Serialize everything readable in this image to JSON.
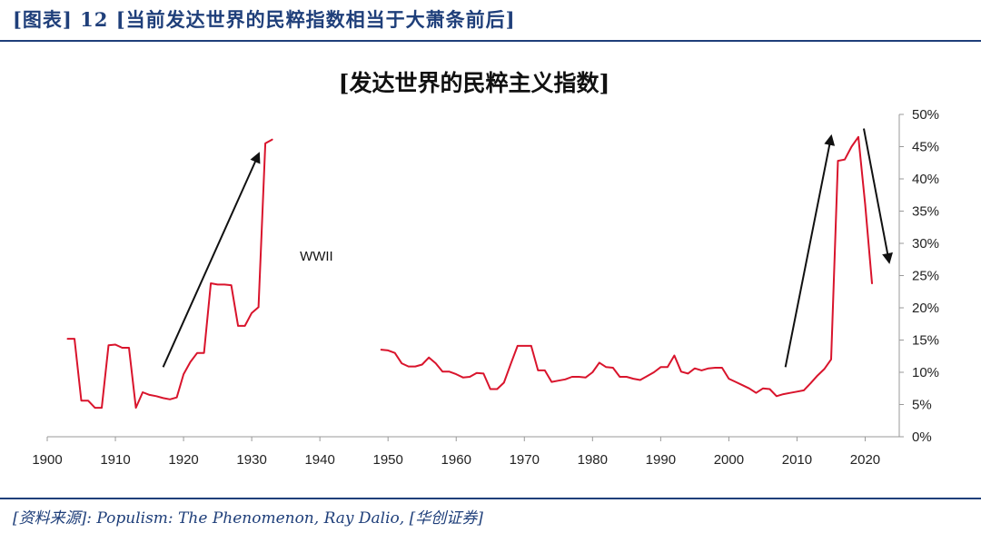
{
  "figure_label": "[图表] 12 [当前发达世界的民粹指数相当于大萧条前后]",
  "source_text": "[资料来源]: Populism: The Phenomenon, Ray Dalio, [华创证券]",
  "colors": {
    "series": "#d9142c",
    "arrow": "#111111",
    "frame": "#1f3f7a",
    "axis": "#999999"
  },
  "chart_data": {
    "type": "line",
    "title": "[发达世界的民粹主义指数]",
    "xlabel": "",
    "ylabel": "",
    "xlim": [
      1900,
      2025
    ],
    "ylim": [
      0,
      50
    ],
    "x_ticks": [
      "1900",
      "1910",
      "1920",
      "1930",
      "1940",
      "1950",
      "1960",
      "1970",
      "1980",
      "1990",
      "2000",
      "2010",
      "2020"
    ],
    "y_ticks": [
      "0%",
      "5%",
      "10%",
      "15%",
      "20%",
      "25%",
      "30%",
      "35%",
      "40%",
      "45%",
      "50%"
    ],
    "y_axis_side": "right",
    "grid": false,
    "legend": "none",
    "annotations": [
      {
        "text": "WWII",
        "x": 1939.5,
        "y": 28
      }
    ],
    "arrows": [
      {
        "from": [
          1917,
          10.8
        ],
        "to": [
          1931,
          43.8
        ]
      },
      {
        "from": [
          2008.3,
          10.8
        ],
        "to": [
          2015,
          46.5
        ]
      },
      {
        "from": [
          2019.8,
          47.8
        ],
        "to": [
          2023.5,
          27.2
        ]
      }
    ],
    "series": [
      {
        "segments": [
          {
            "x": [
              1903,
              1904,
              1905,
              1906,
              1907,
              1908,
              1909,
              1910,
              1911,
              1912,
              1913,
              1914,
              1915,
              1916,
              1917,
              1918,
              1919,
              1920,
              1921,
              1922,
              1923,
              1924,
              1925,
              1926,
              1927,
              1928,
              1929,
              1930,
              1931,
              1932,
              1933
            ],
            "y": [
              15.2,
              15.2,
              5.6,
              5.6,
              4.5,
              4.5,
              14.2,
              14.3,
              13.8,
              13.8,
              4.5,
              6.9,
              6.5,
              6.3,
              6.0,
              5.8,
              6.1,
              9.7,
              11.6,
              13.0,
              13.0,
              23.8,
              23.6,
              23.6,
              23.5,
              17.2,
              17.2,
              19.2,
              20.1,
              45.5,
              46.1
            ]
          },
          {
            "x": [
              1949,
              1950,
              1951,
              1952,
              1953,
              1954,
              1955,
              1956,
              1957,
              1958,
              1959,
              1960,
              1961,
              1962,
              1963,
              1964,
              1965,
              1966,
              1967,
              1968,
              1969,
              1970,
              1971,
              1972,
              1973,
              1974,
              1975,
              1976,
              1977,
              1978,
              1979,
              1980,
              1981,
              1982,
              1983,
              1984,
              1985,
              1986,
              1987,
              1988,
              1989,
              1990,
              1991,
              1992,
              1993,
              1994,
              1995,
              1996,
              1997,
              1998,
              1999,
              2000,
              2001,
              2002,
              2003,
              2004,
              2005,
              2006,
              2007,
              2008,
              2009,
              2010,
              2011,
              2012,
              2013,
              2014,
              2015,
              2016,
              2017,
              2018,
              2019,
              2020,
              2021
            ],
            "y": [
              13.5,
              13.4,
              13.0,
              11.4,
              10.9,
              10.9,
              11.2,
              12.3,
              11.4,
              10.1,
              10.1,
              9.7,
              9.2,
              9.3,
              9.9,
              9.8,
              7.4,
              7.4,
              8.4,
              11.3,
              14.1,
              14.1,
              14.1,
              10.3,
              10.3,
              8.5,
              8.7,
              8.9,
              9.3,
              9.3,
              9.2,
              10.0,
              11.5,
              10.8,
              10.7,
              9.3,
              9.3,
              9.0,
              8.8,
              9.4,
              10.0,
              10.8,
              10.8,
              12.6,
              10.1,
              9.8,
              10.6,
              10.3,
              10.6,
              10.7,
              10.7,
              9.0,
              8.5,
              8.0,
              7.5,
              6.8,
              7.5,
              7.4,
              6.3,
              6.6,
              6.8,
              7.0,
              7.2,
              8.3,
              9.5,
              10.5,
              12.0,
              42.8,
              43.0,
              45.0,
              46.5,
              36.0,
              23.8
            ]
          }
        ]
      }
    ]
  }
}
